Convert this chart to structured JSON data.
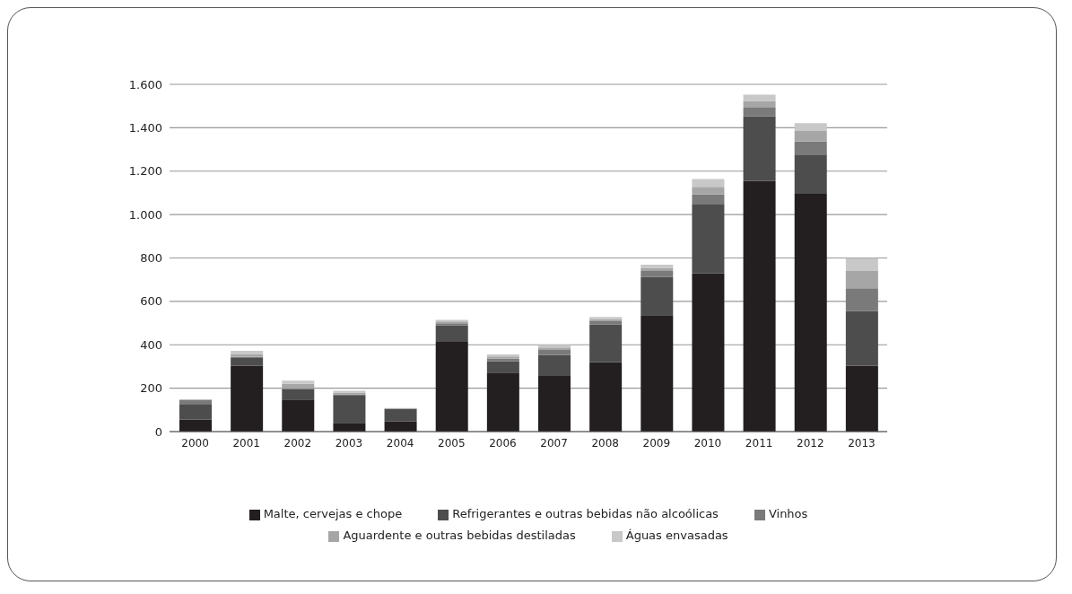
{
  "chart_data": {
    "type": "bar",
    "stacked": true,
    "categories": [
      "2000",
      "2001",
      "2002",
      "2003",
      "2004",
      "2005",
      "2006",
      "2007",
      "2008",
      "2009",
      "2010",
      "2011",
      "2012",
      "2013"
    ],
    "series": [
      {
        "name": "Malte, cervejas e chope",
        "color": "#231f20",
        "values": [
          56,
          303,
          148,
          40,
          47,
          413,
          272,
          256,
          320,
          536,
          729,
          1156,
          1096,
          303
        ]
      },
      {
        "name": "Refrigerantes e outras bebidas não alcoólicas",
        "color": "#4d4d4d",
        "values": [
          71,
          36,
          47,
          128,
          56,
          76,
          51,
          97,
          173,
          177,
          320,
          297,
          180,
          253
        ]
      },
      {
        "name": "Vinhos",
        "color": "#7a7a7a",
        "values": [
          20,
          5,
          5,
          4,
          2,
          10,
          13,
          23,
          16,
          27,
          43,
          39,
          60,
          104
        ]
      },
      {
        "name": "Aguardente e outras bebidas destiladas",
        "color": "#a6a6a6",
        "values": [
          null,
          14,
          20,
          8,
          2,
          8,
          10,
          12,
          10,
          15,
          36,
          31,
          49,
          80
        ]
      },
      {
        "name": "Águas envasadas",
        "color": "#c8c8c8",
        "values": [
          null,
          14,
          15,
          8,
          2,
          8,
          10,
          11,
          9,
          14,
          36,
          29,
          36,
          59
        ]
      }
    ],
    "ylim": [
      0,
      1600
    ],
    "yticks": [
      {
        "value": 0,
        "label": "0"
      },
      {
        "value": 200,
        "label": "200"
      },
      {
        "value": 400,
        "label": "400"
      },
      {
        "value": 600,
        "label": "600"
      },
      {
        "value": 800,
        "label": "800"
      },
      {
        "value": 1000,
        "label": "1.000"
      },
      {
        "value": 1200,
        "label": "1.200"
      },
      {
        "value": 1400,
        "label": "1.400"
      },
      {
        "value": 1600,
        "label": "1.600"
      }
    ],
    "grid": "y",
    "legend": "bottom"
  }
}
